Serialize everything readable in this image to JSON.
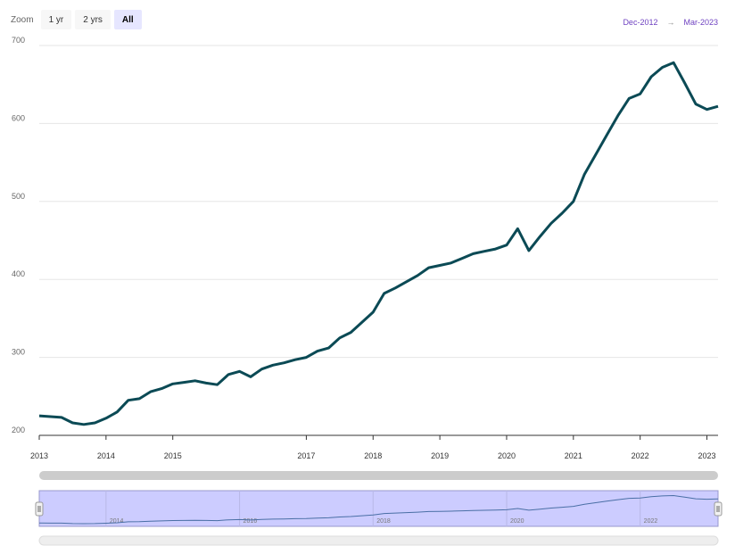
{
  "toolbar": {
    "zoom_label": "Zoom",
    "buttons": [
      "1 yr",
      "2 yrs",
      "All"
    ],
    "active_button": "All"
  },
  "range": {
    "from": "Dec-2012",
    "arrow": "→",
    "to": "Mar-2023"
  },
  "navigator": {
    "labels": [
      "2014",
      "2016",
      "2018",
      "2020",
      "2022"
    ]
  },
  "colors": {
    "line": "#0b4a55",
    "navigator_fill": "#ccccff",
    "accent": "#6f42c1"
  },
  "chart_data": {
    "type": "line",
    "title": "",
    "xlabel": "",
    "ylabel": "",
    "ylim": [
      200,
      700
    ],
    "xlim": [
      "2013-01",
      "2023-03"
    ],
    "y_ticks": [
      200,
      300,
      400,
      500,
      600,
      700
    ],
    "x_ticks": [
      "2013",
      "2014",
      "2015",
      "2017",
      "2018",
      "2019",
      "2020",
      "2021",
      "2022",
      "2023"
    ],
    "grid": true,
    "series": [
      {
        "x": [
          "2013-01",
          "2013-03",
          "2013-05",
          "2013-07",
          "2013-09",
          "2013-11",
          "2014-01",
          "2014-03",
          "2014-05",
          "2014-07",
          "2014-09",
          "2014-11",
          "2015-01",
          "2015-03",
          "2015-05",
          "2015-07",
          "2015-09",
          "2015-11",
          "2016-01",
          "2016-03",
          "2016-05",
          "2016-07",
          "2016-09",
          "2016-11",
          "2017-01",
          "2017-03",
          "2017-05",
          "2017-07",
          "2017-09",
          "2017-11",
          "2018-01",
          "2018-03",
          "2018-05",
          "2018-07",
          "2018-09",
          "2018-11",
          "2019-01",
          "2019-03",
          "2019-05",
          "2019-07",
          "2019-09",
          "2019-11",
          "2020-01",
          "2020-03",
          "2020-05",
          "2020-07",
          "2020-09",
          "2020-11",
          "2021-01",
          "2021-03",
          "2021-05",
          "2021-07",
          "2021-09",
          "2021-11",
          "2022-01",
          "2022-03",
          "2022-05",
          "2022-07",
          "2022-09",
          "2022-11",
          "2023-01",
          "2023-03"
        ],
        "values": [
          225,
          224,
          223,
          216,
          214,
          216,
          222,
          230,
          245,
          247,
          256,
          260,
          266,
          268,
          270,
          267,
          265,
          278,
          282,
          275,
          285,
          290,
          293,
          297,
          300,
          308,
          312,
          325,
          332,
          345,
          358,
          382,
          389,
          397,
          405,
          415,
          418,
          421,
          427,
          433,
          436,
          439,
          444,
          465,
          437,
          455,
          472,
          485,
          500,
          535,
          560,
          585,
          610,
          632,
          638,
          660,
          672,
          678,
          652,
          625,
          618,
          622
        ]
      }
    ]
  }
}
